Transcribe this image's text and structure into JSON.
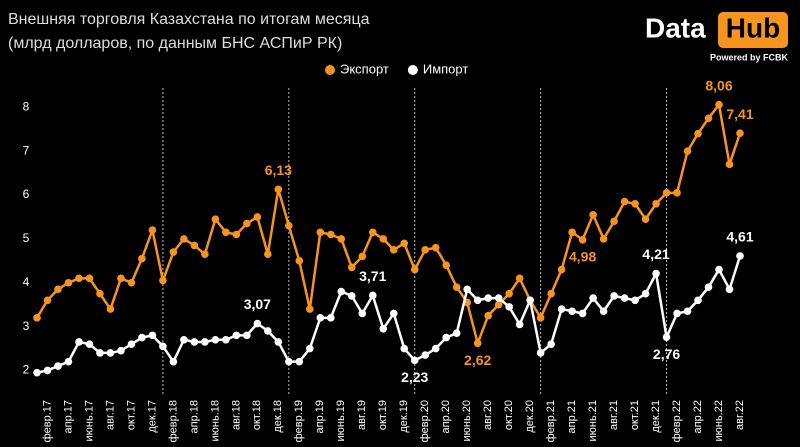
{
  "chart_data": {
    "type": "line",
    "title": "Внешняя торговля Казахстана по итогам месяца",
    "subtitle": "(млрд долларов, по данным БНС АСПиР РК)",
    "logo": {
      "left": "Data",
      "right": "Hub",
      "tagline": "Powered by FCBK"
    },
    "categories": [
      null,
      "февр.17",
      null,
      "апр.17",
      null,
      "июнь.17",
      null,
      "авг.17",
      null,
      "окт.17",
      null,
      "дек.17",
      null,
      "февр.18",
      null,
      "апр.18",
      null,
      "июнь.18",
      null,
      "авг.18",
      null,
      "окт.18",
      null,
      "дек.18",
      null,
      "февр.19",
      null,
      "апр.19",
      null,
      "июнь.19",
      null,
      "авг.19",
      null,
      "окт.19",
      null,
      "дек.19",
      null,
      "февр.20",
      null,
      "апр.20",
      null,
      "июнь.20",
      null,
      "авг.20",
      null,
      "окт.20",
      null,
      "дек.20",
      null,
      "февр.21",
      null,
      "апр.21",
      null,
      "июнь.21",
      null,
      "авг.21",
      null,
      "окт.21",
      null,
      "дек.21",
      null,
      "февр.22",
      null,
      "апр.22",
      null,
      "июнь.22",
      null,
      "авг.22"
    ],
    "series": [
      {
        "name": "Экспорт",
        "color": "#f7941d",
        "values": [
          3.2,
          3.6,
          3.85,
          4.0,
          4.1,
          4.1,
          3.75,
          3.4,
          4.1,
          4.0,
          4.55,
          5.2,
          4.05,
          4.7,
          5.0,
          4.85,
          4.65,
          5.45,
          5.15,
          5.1,
          5.35,
          5.5,
          4.65,
          6.13,
          5.3,
          4.5,
          3.4,
          5.15,
          5.1,
          5.0,
          4.35,
          4.6,
          5.15,
          5.0,
          4.75,
          4.9,
          4.3,
          4.75,
          4.8,
          4.4,
          3.9,
          3.55,
          2.62,
          3.25,
          3.5,
          3.75,
          4.1,
          3.6,
          3.2,
          3.75,
          4.3,
          5.15,
          4.98,
          5.55,
          5.0,
          5.4,
          5.85,
          5.8,
          5.45,
          5.8,
          6.05,
          6.05,
          7.0,
          7.4,
          7.75,
          8.06,
          6.7,
          7.41
        ],
        "value_labels": [
          null,
          null,
          null,
          null,
          null,
          null,
          null,
          null,
          null,
          null,
          null,
          null,
          null,
          null,
          null,
          null,
          null,
          null,
          null,
          null,
          null,
          null,
          null,
          "6,13",
          null,
          null,
          null,
          null,
          null,
          null,
          null,
          null,
          null,
          null,
          null,
          null,
          null,
          null,
          null,
          null,
          null,
          null,
          "2,62",
          null,
          null,
          null,
          null,
          null,
          null,
          null,
          null,
          null,
          "4,98",
          null,
          null,
          null,
          null,
          null,
          null,
          null,
          null,
          null,
          null,
          null,
          null,
          "8,06",
          null,
          "7,41"
        ]
      },
      {
        "name": "Импорт",
        "color": "#ffffff",
        "values": [
          1.95,
          2.0,
          2.1,
          2.2,
          2.65,
          2.6,
          2.4,
          2.4,
          2.45,
          2.6,
          2.75,
          2.8,
          2.55,
          2.2,
          2.7,
          2.65,
          2.65,
          2.7,
          2.7,
          2.8,
          2.8,
          3.07,
          2.9,
          2.65,
          2.2,
          2.2,
          2.5,
          3.2,
          3.2,
          3.8,
          3.7,
          3.3,
          3.71,
          2.95,
          3.3,
          2.5,
          2.23,
          2.35,
          2.5,
          2.75,
          2.85,
          3.85,
          3.6,
          3.65,
          3.65,
          3.45,
          3.05,
          3.6,
          2.4,
          2.6,
          3.4,
          3.35,
          3.3,
          3.65,
          3.35,
          3.7,
          3.65,
          3.6,
          3.75,
          4.21,
          2.76,
          3.3,
          3.35,
          3.6,
          3.9,
          4.3,
          3.85,
          4.61
        ],
        "value_labels": [
          null,
          null,
          null,
          null,
          null,
          null,
          null,
          null,
          null,
          null,
          null,
          null,
          null,
          null,
          null,
          null,
          null,
          null,
          null,
          null,
          null,
          "3,07",
          null,
          null,
          null,
          null,
          null,
          null,
          null,
          null,
          null,
          null,
          "3,71",
          null,
          null,
          null,
          "2,23",
          null,
          null,
          null,
          null,
          null,
          null,
          null,
          null,
          null,
          null,
          null,
          null,
          null,
          null,
          null,
          null,
          null,
          null,
          null,
          null,
          null,
          null,
          "4,21",
          "2,76",
          null,
          null,
          null,
          null,
          null,
          null,
          "4,61"
        ]
      }
    ],
    "ylim": [
      1.6,
      8.6
    ],
    "yticks": [
      2,
      3,
      4,
      5,
      6,
      7,
      8
    ],
    "grid": false,
    "legend": "top"
  }
}
